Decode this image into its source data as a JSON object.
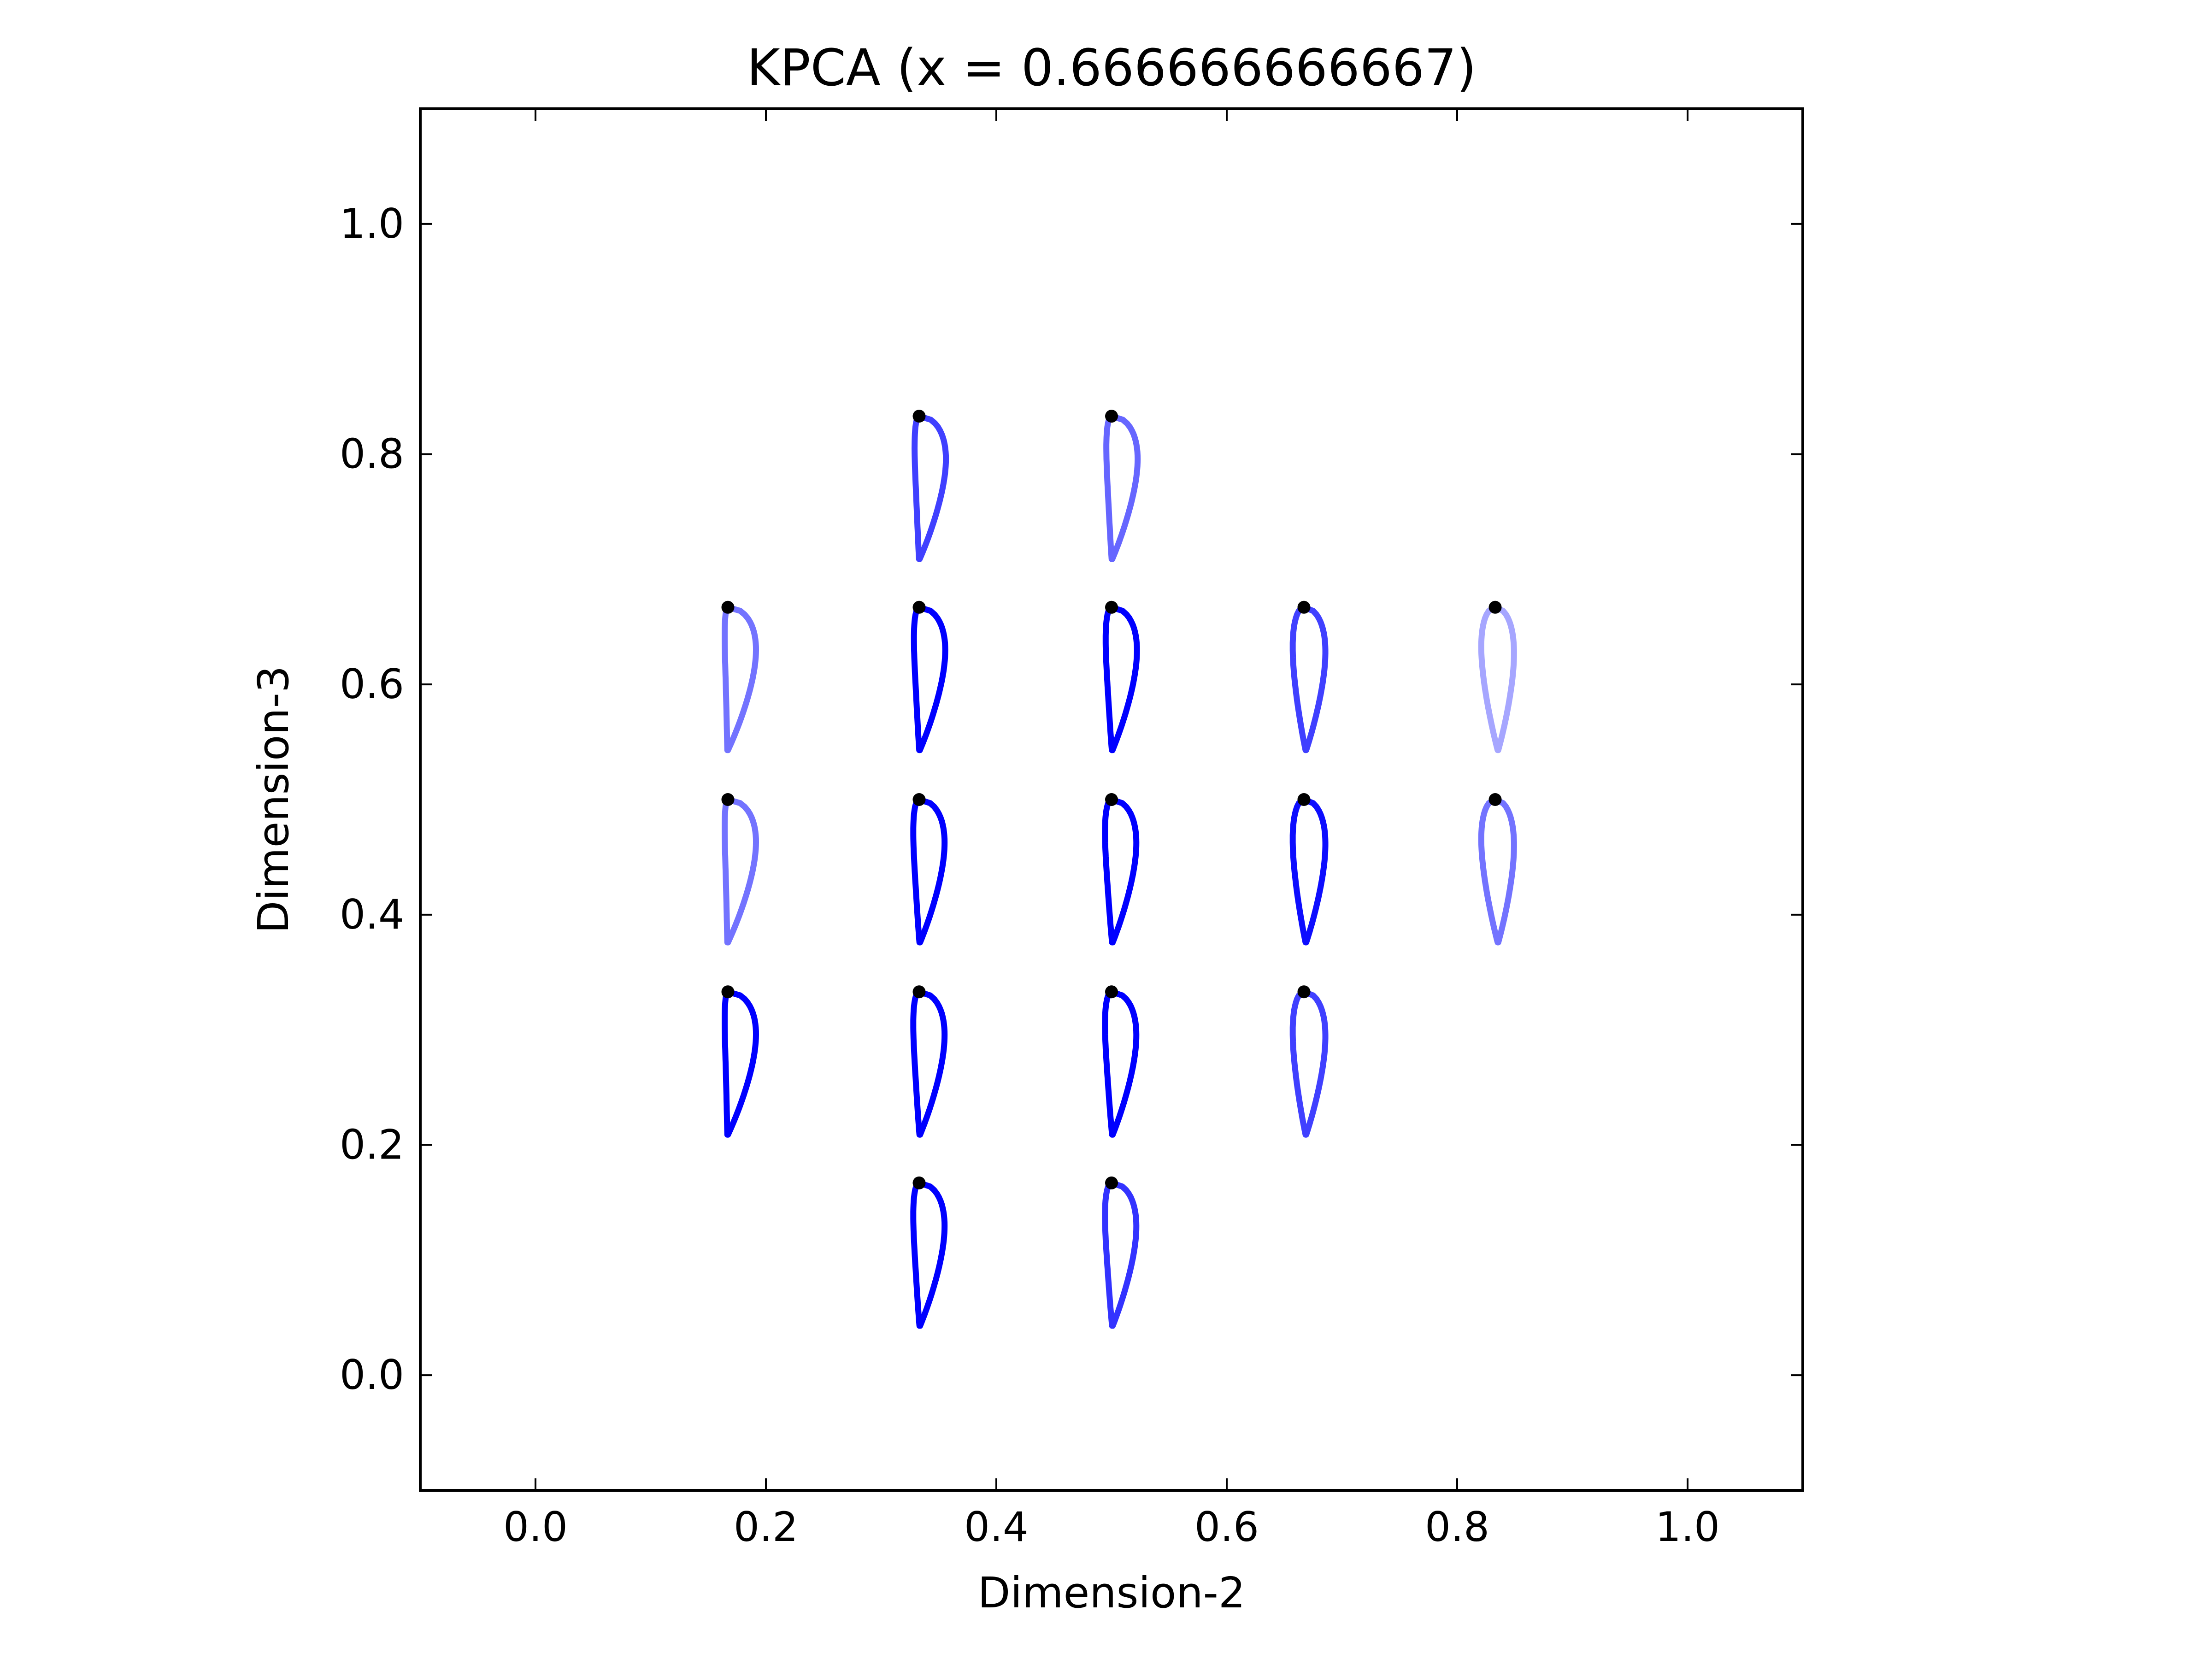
{
  "chart_data": {
    "type": "scatter",
    "title": "KPCA (x = 0.666666666667)",
    "xlabel": "Dimension-2",
    "ylabel": "Dimension-3",
    "xlim": [
      -0.1,
      1.1
    ],
    "ylim": [
      -0.1,
      1.1
    ],
    "x_ticks": [
      "0.0",
      "0.2",
      "0.4",
      "0.6",
      "0.8",
      "1.0"
    ],
    "y_ticks": [
      "0.0",
      "0.2",
      "0.4",
      "0.6",
      "0.8",
      "1.0"
    ],
    "grid": false,
    "legend": "none",
    "marker": "airfoil-shape-with-leading-edge-dot",
    "line_color": "#0000ff",
    "points": [
      {
        "x": 0.333,
        "y": 0.833,
        "opacity": 0.75,
        "camber": 0.6
      },
      {
        "x": 0.5,
        "y": 0.833,
        "opacity": 0.6,
        "camber": 0.55
      },
      {
        "x": 0.167,
        "y": 0.667,
        "opacity": 0.55,
        "camber": 0.7
      },
      {
        "x": 0.333,
        "y": 0.667,
        "opacity": 1.0,
        "camber": 0.55
      },
      {
        "x": 0.5,
        "y": 0.667,
        "opacity": 1.0,
        "camber": 0.5
      },
      {
        "x": 0.667,
        "y": 0.667,
        "opacity": 0.75,
        "camber": 0.2
      },
      {
        "x": 0.833,
        "y": 0.667,
        "opacity": 0.35,
        "camber": 0.0
      },
      {
        "x": 0.167,
        "y": 0.5,
        "opacity": 0.55,
        "camber": 0.7
      },
      {
        "x": 0.333,
        "y": 0.5,
        "opacity": 1.0,
        "camber": 0.5
      },
      {
        "x": 0.5,
        "y": 0.5,
        "opacity": 1.0,
        "camber": 0.45
      },
      {
        "x": 0.667,
        "y": 0.5,
        "opacity": 0.95,
        "camber": 0.2
      },
      {
        "x": 0.833,
        "y": 0.5,
        "opacity": 0.55,
        "camber": 0.0
      },
      {
        "x": 0.167,
        "y": 0.333,
        "opacity": 1.0,
        "camber": 0.7
      },
      {
        "x": 0.333,
        "y": 0.333,
        "opacity": 1.0,
        "camber": 0.5
      },
      {
        "x": 0.5,
        "y": 0.333,
        "opacity": 1.0,
        "camber": 0.45
      },
      {
        "x": 0.667,
        "y": 0.333,
        "opacity": 0.75,
        "camber": 0.2
      },
      {
        "x": 0.333,
        "y": 0.167,
        "opacity": 1.0,
        "camber": 0.5
      },
      {
        "x": 0.5,
        "y": 0.167,
        "opacity": 0.8,
        "camber": 0.45
      }
    ]
  }
}
